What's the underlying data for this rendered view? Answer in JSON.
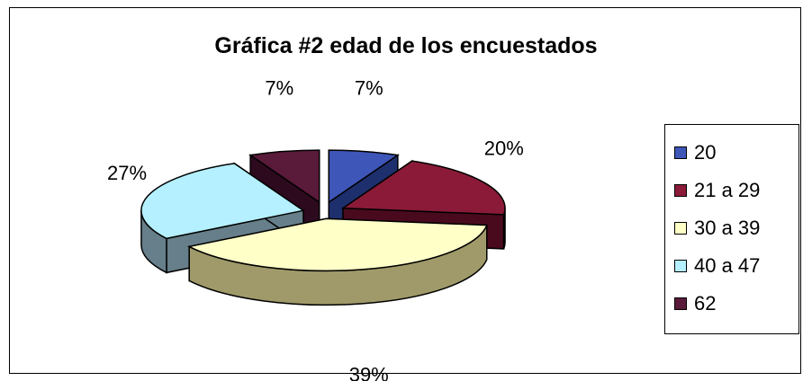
{
  "chart_data": {
    "type": "pie",
    "title": "Gráfica #2 edad de los encuestados",
    "categories": [
      "20",
      "21 a 29",
      "30 a 39",
      "40 a 47",
      "62"
    ],
    "values": [
      7,
      20,
      39,
      27,
      7
    ],
    "labels": [
      "7%",
      "20%",
      "39%",
      "27%",
      "7%"
    ],
    "colors": [
      "#3e56b8",
      "#8a1a38",
      "#ffffc8",
      "#b4f0ff",
      "#5a1a3a"
    ],
    "side_colors": [
      "#1e2f6e",
      "#4a0a1e",
      "#a09a6a",
      "#667f8a",
      "#2e0a1e"
    ],
    "legend_position": "right",
    "exploded": true
  }
}
